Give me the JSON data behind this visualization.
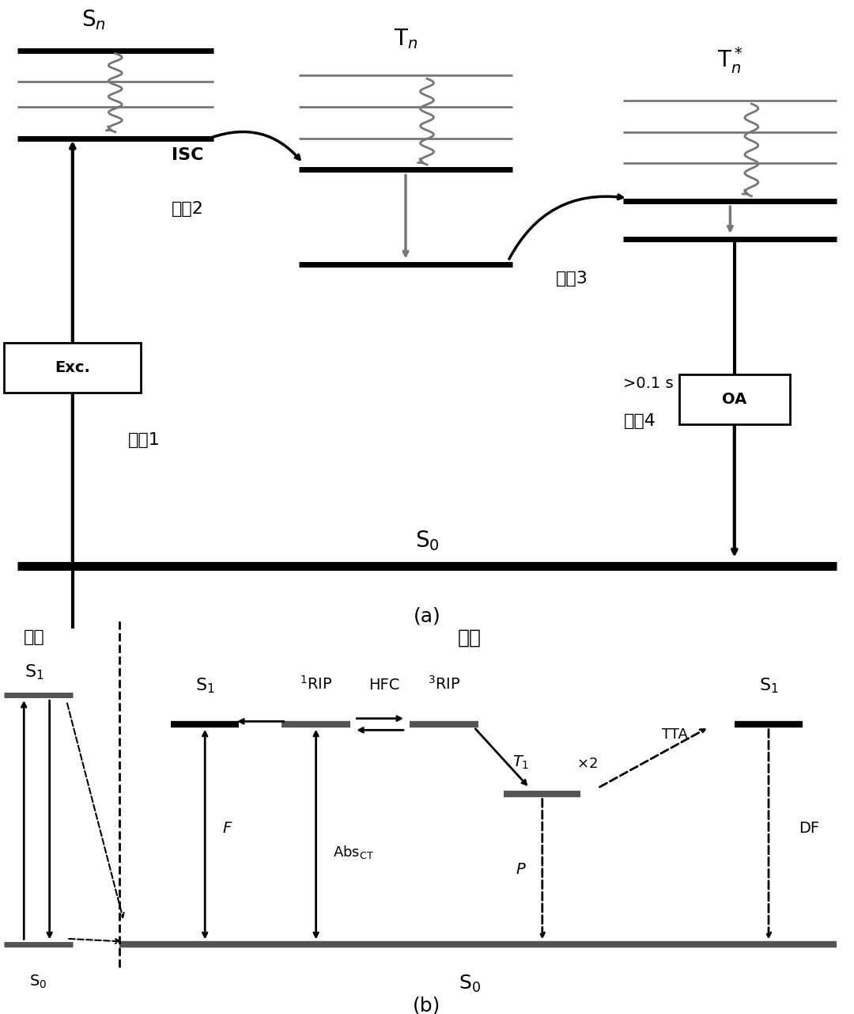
{
  "fig_width": 10.8,
  "fig_height": 12.81,
  "bg_color": "#ffffff",
  "black": "#000000",
  "dark_gray": "#444444",
  "gray": "#888888",
  "level_color": "#222222",
  "gray_level": "#777777",
  "panel_a_label": "(a)",
  "panel_b_label": "(b)",
  "sn_label": "S",
  "sn_sub": "n",
  "tn_label": "T",
  "tn_sub": "n",
  "tn_star_label": "T",
  "tn_star_sub": "n",
  "tn_star_sup": "*",
  "s0_label": "S",
  "s0_sub": "0",
  "exc_label": "Exc.",
  "isc_label": "ISC",
  "trans1": "跃迁1",
  "trans2": "跃迁2",
  "trans3": "跃迁3",
  "trans4": "跃迁4",
  "oa_label": "OA",
  "time_label": ">0.1 s",
  "solution_label": "溶液",
  "crystal_label": "晶体",
  "s1_label": "S",
  "s1_sub": "1",
  "t1_label": "T",
  "t1_sub": "1",
  "rip1_label": "¹RIP",
  "hfc_label": "HFC",
  "rip3_label": "³RIP",
  "tta_label": "TTA",
  "df_label": "DF",
  "f_label": "F",
  "abs_label": "Abs",
  "abs_sub": "CT",
  "p_label": "P",
  "x2_label": "×2"
}
